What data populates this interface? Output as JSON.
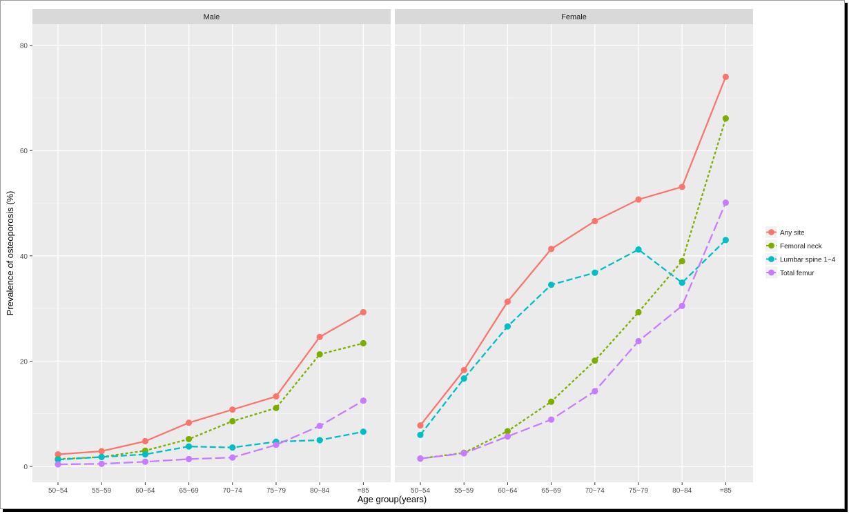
{
  "chart_data": {
    "type": "line",
    "ylabel": "Prevalence of osteoporosis (%)",
    "xlabel": "Age group(years)",
    "ylim": [
      -3,
      84
    ],
    "yticks": [
      "0",
      "20",
      "40",
      "60",
      "80"
    ],
    "categories": [
      "50−54",
      "55−59",
      "60−64",
      "65−69",
      "70−74",
      "75−79",
      "80−84",
      "=85"
    ],
    "grid": true,
    "legend_position": "right",
    "legend": [
      "Any site",
      "Femoral neck",
      "Lumbar spine 1−4",
      "Total femur"
    ],
    "series_colors": [
      "#F8766D",
      "#7CAE00",
      "#00BFC4",
      "#C77CFF"
    ],
    "series_dash": [
      "solid",
      "dotted",
      "dashed",
      "longdash"
    ],
    "panels": [
      {
        "title": "Male",
        "series": [
          {
            "name": "Any site",
            "values": [
              2.3,
              2.9,
              4.8,
              8.3,
              10.8,
              13.3,
              24.6,
              29.3
            ]
          },
          {
            "name": "Femoral neck",
            "values": [
              1.4,
              1.8,
              3.0,
              5.2,
              8.6,
              11.1,
              21.3,
              23.4
            ]
          },
          {
            "name": "Lumbar spine 1−4",
            "values": [
              1.3,
              1.8,
              2.3,
              3.8,
              3.6,
              4.7,
              5.0,
              6.6
            ]
          },
          {
            "name": "Total femur",
            "values": [
              0.4,
              0.5,
              0.9,
              1.4,
              1.7,
              4.1,
              7.7,
              12.5
            ]
          }
        ]
      },
      {
        "title": "Female",
        "series": [
          {
            "name": "Any site",
            "values": [
              7.8,
              18.3,
              31.3,
              41.3,
              46.6,
              50.7,
              53.1,
              74.0
            ]
          },
          {
            "name": "Femoral neck",
            "values": [
              1.5,
              2.6,
              6.7,
              12.3,
              20.1,
              29.3,
              39.0,
              66.1
            ]
          },
          {
            "name": "Lumbar spine 1−4",
            "values": [
              6.0,
              16.7,
              26.6,
              34.5,
              36.8,
              41.2,
              34.9,
              43.0
            ]
          },
          {
            "name": "Total femur",
            "values": [
              1.5,
              2.5,
              5.7,
              8.9,
              14.3,
              23.8,
              30.5,
              50.1
            ]
          }
        ]
      }
    ]
  }
}
